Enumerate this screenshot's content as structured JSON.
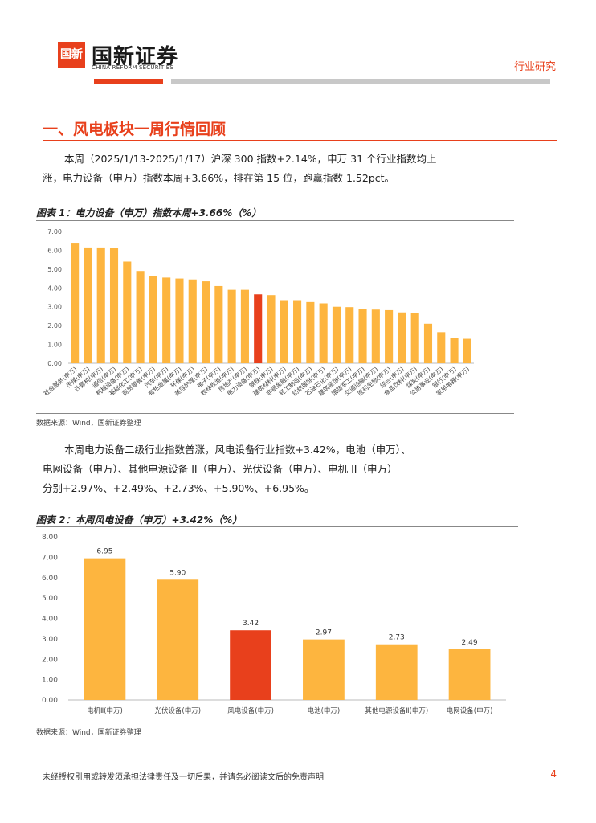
{
  "header": {
    "logo_mark": "国新",
    "logo_cn": "国新证券",
    "logo_en": "CHINA REFORM SECURITIES",
    "right_label": "行业研究"
  },
  "section": {
    "title": "一、风电板块一周行情回顾"
  },
  "paragraphs": {
    "p1_line1": "本周（2025/1/13-2025/1/17）沪深 300 指数+2.14%，申万 31 个行业指数均上",
    "p1_line2": "涨，电力设备（申万）指数本周+3.66%，排在第 15 位，跑赢指数 1.52pct。",
    "p2_line1": "本周电力设备二级行业指数普涨，风电设备行业指数+3.42%，电池（申万）、",
    "p2_line2": "电网设备（申万）、其他电源设备 II（申万）、光伏设备（申万）、电机 II（申万）",
    "p2_line3": "分别+2.97%、+2.49%、+2.73%、+5.90%、+6.95%。"
  },
  "figure1": {
    "title": "图表 1：电力设备（申万）指数本周+3.66%（%）",
    "source": "数据来源：Wind，国新证券整理"
  },
  "figure2": {
    "title": "图表 2：本周风电设备（申万）+3.42%（%）",
    "source": "数据来源：Wind，国新证券整理"
  },
  "colors": {
    "accent": "#e8401c",
    "bar": "#fdb53f",
    "highlight": "#e8401c"
  },
  "chart_data": [
    {
      "type": "bar",
      "title": "电力设备（申万）指数本周+3.66%（%）",
      "ylim": [
        0,
        7
      ],
      "yticks": [
        "0.00",
        "1.00",
        "2.00",
        "3.00",
        "4.00",
        "5.00",
        "6.00",
        "7.00"
      ],
      "categories": [
        "社会服务(申万)",
        "传媒(申万)",
        "计算机(申万)",
        "通信(申万)",
        "机械设备(申万)",
        "基础化工(申万)",
        "商贸零售(申万)",
        "汽车(申万)",
        "有色金属(申万)",
        "环保(申万)",
        "美容护理(申万)",
        "电子(申万)",
        "农林牧渔(申万)",
        "房地产(申万)",
        "电力设备(申万)",
        "钢铁(申万)",
        "建筑材料(申万)",
        "非银金融(申万)",
        "轻工制造(申万)",
        "纺织服饰(申万)",
        "石油石化(申万)",
        "建筑装饰(申万)",
        "国防军工(申万)",
        "交通运输(申万)",
        "医药生物(申万)",
        "综合(申万)",
        "食品饮料(申万)",
        "煤炭(申万)",
        "公用事业(申万)",
        "银行(申万)",
        "家用电器(申万)"
      ],
      "values": [
        6.4,
        6.15,
        6.15,
        6.12,
        5.4,
        4.9,
        4.65,
        4.55,
        4.5,
        4.45,
        4.35,
        4.1,
        3.9,
        3.9,
        3.66,
        3.62,
        3.35,
        3.35,
        3.25,
        3.18,
        3.0,
        2.98,
        2.9,
        2.85,
        2.82,
        2.7,
        2.68,
        2.1,
        1.65,
        1.35,
        1.3
      ],
      "highlight_index": 14
    },
    {
      "type": "bar",
      "title": "本周风电设备（申万）+3.42%（%）",
      "ylim": [
        0,
        8
      ],
      "yticks": [
        "0.00",
        "1.00",
        "2.00",
        "3.00",
        "4.00",
        "5.00",
        "6.00",
        "7.00",
        "8.00"
      ],
      "categories": [
        "电机Ⅱ(申万)",
        "光伏设备(申万)",
        "风电设备(申万)",
        "电池(申万)",
        "其他电源设备Ⅱ(申万)",
        "电网设备(申万)"
      ],
      "values": [
        6.95,
        5.9,
        3.42,
        2.97,
        2.73,
        2.49
      ],
      "labels": [
        "6.95",
        "5.90",
        "3.42",
        "2.97",
        "2.73",
        "2.49"
      ],
      "highlight_index": 2
    }
  ],
  "footer": {
    "disclaimer": "未经授权引用或转发须承担法律责任及一切后果，并请务必阅读文后的免责声明",
    "page": "4"
  }
}
